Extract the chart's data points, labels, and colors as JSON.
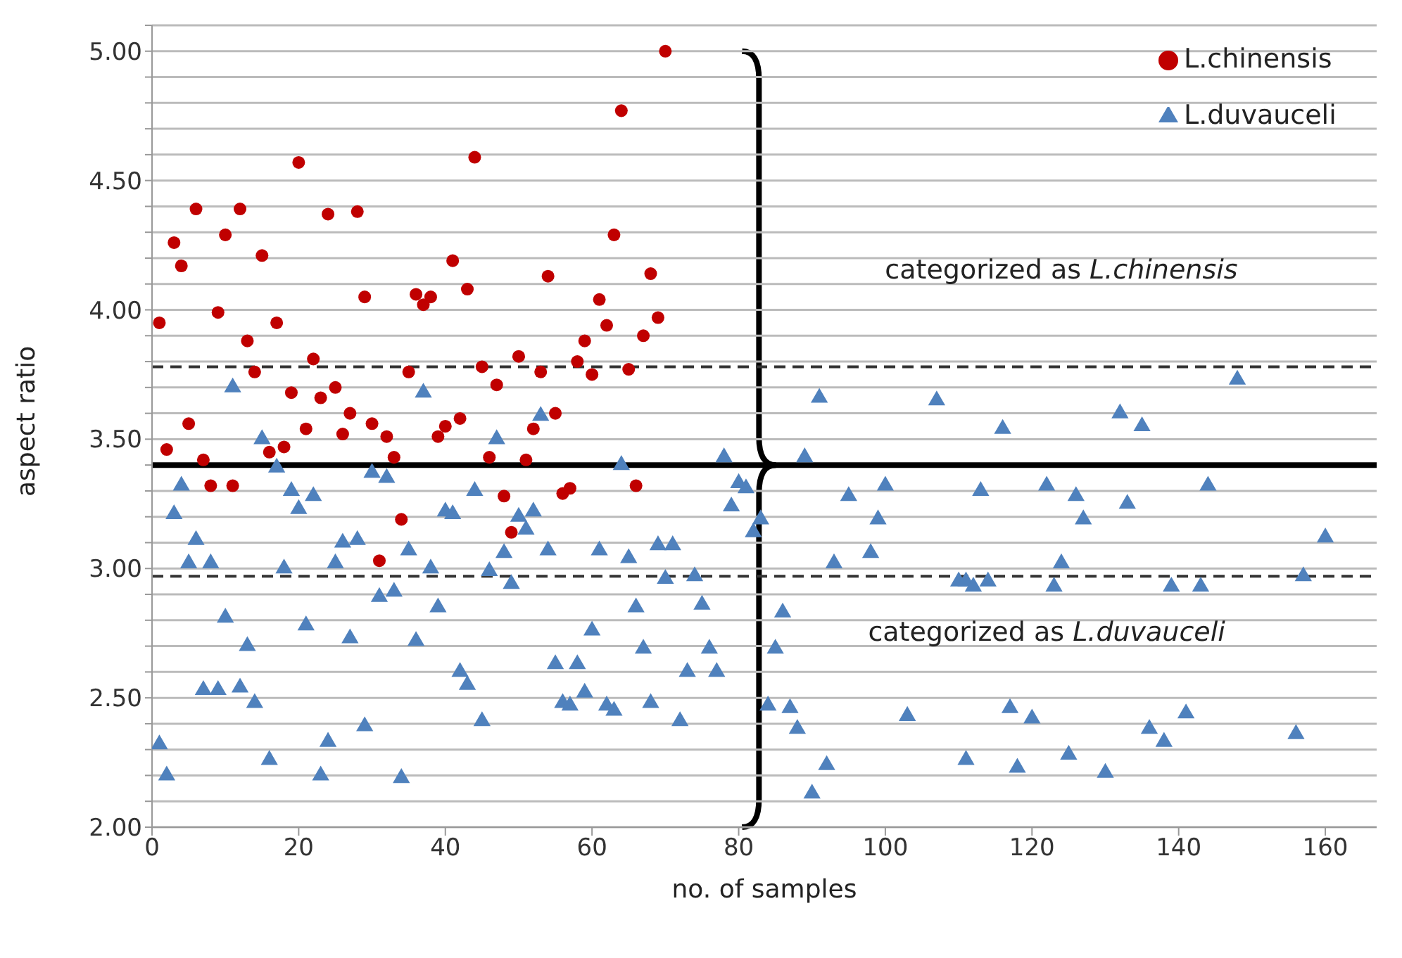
{
  "chart_data": {
    "type": "scatter",
    "xlabel": "no. of samples",
    "ylabel": "aspect ratio",
    "xlim": [
      0,
      167
    ],
    "xticks": [
      0,
      20,
      40,
      60,
      80,
      100,
      120,
      140,
      160
    ],
    "ylim": [
      2,
      5.1
    ],
    "yticks": [
      {
        "value": 2,
        "label": "2.00"
      },
      {
        "value": 2.1,
        "label": null
      },
      {
        "value": 2.2,
        "label": null
      },
      {
        "value": 2.3,
        "label": null
      },
      {
        "value": 2.4,
        "label": null
      },
      {
        "value": 2.5,
        "label": "2.50"
      },
      {
        "value": 2.6,
        "label": null
      },
      {
        "value": 2.7,
        "label": null
      },
      {
        "value": 2.8,
        "label": null
      },
      {
        "value": 2.9,
        "label": null
      },
      {
        "value": 3,
        "label": "3.00"
      },
      {
        "value": 3.1,
        "label": null
      },
      {
        "value": 3.2,
        "label": null
      },
      {
        "value": 3.3,
        "label": null
      },
      {
        "value": 3.4,
        "label": null
      },
      {
        "value": 3.5,
        "label": "3.50"
      },
      {
        "value": 3.6,
        "label": null
      },
      {
        "value": 3.7,
        "label": null
      },
      {
        "value": 3.8,
        "label": null
      },
      {
        "value": 3.9,
        "label": null
      },
      {
        "value": 4,
        "label": "4.00"
      },
      {
        "value": 4.1,
        "label": null
      },
      {
        "value": 4.2,
        "label": null
      },
      {
        "value": 4.3,
        "label": null
      },
      {
        "value": 4.4,
        "label": null
      },
      {
        "value": 4.5,
        "label": "4.50"
      },
      {
        "value": 4.6,
        "label": null
      },
      {
        "value": 4.7,
        "label": null
      },
      {
        "value": 4.8,
        "label": null
      },
      {
        "value": 4.9,
        "label": null
      },
      {
        "value": 5,
        "label": "5.00"
      },
      {
        "value": 5.1,
        "label": null
      }
    ],
    "grid": "y",
    "legend": "top right",
    "ref_lines": [
      {
        "axis": "y",
        "value": 3.4,
        "line_style": "solid",
        "color": "#000000"
      },
      {
        "axis": "y",
        "value": 3.78,
        "line_style": "dashed",
        "color": "#333333"
      },
      {
        "axis": "y",
        "value": 2.97,
        "line_style": "dashed",
        "color": "#333333"
      }
    ],
    "annotations": [
      "categorized as L.chinensis",
      "categorized as L.duvauceli"
    ],
    "series": [
      {
        "name": "L.chinensis",
        "color": "#c00000",
        "marker": "circle",
        "x": [
          1,
          2,
          3,
          4,
          5,
          6,
          7,
          8,
          9,
          10,
          11,
          12,
          13,
          14,
          15,
          16,
          17,
          18,
          19,
          20,
          21,
          22,
          23,
          24,
          25,
          26,
          27,
          28,
          29,
          30,
          31,
          32,
          33,
          34,
          35,
          36,
          37,
          38,
          39,
          40,
          41,
          42,
          43,
          44,
          45,
          46,
          47,
          48,
          49,
          50,
          51,
          52,
          53,
          54,
          55,
          56,
          57,
          58,
          59,
          60,
          61,
          62,
          63,
          64,
          65,
          66,
          67,
          68,
          69,
          70
        ],
        "values": [
          3.95,
          3.46,
          4.26,
          4.17,
          3.56,
          4.39,
          3.42,
          3.32,
          3.99,
          4.29,
          3.32,
          4.39,
          3.88,
          3.76,
          4.21,
          3.45,
          3.95,
          3.47,
          3.68,
          4.57,
          3.54,
          3.81,
          3.66,
          4.37,
          3.7,
          3.52,
          3.6,
          4.38,
          4.05,
          3.56,
          3.03,
          3.51,
          3.43,
          3.19,
          3.76,
          4.06,
          4.02,
          4.05,
          3.51,
          3.55,
          4.19,
          3.58,
          4.08,
          4.59,
          3.78,
          3.43,
          3.71,
          3.28,
          3.14,
          3.82,
          3.42,
          3.54,
          3.76,
          4.13,
          3.6,
          3.29,
          3.31,
          3.8,
          3.88,
          3.75,
          4.04,
          3.94,
          4.29,
          4.77,
          3.77,
          3.32,
          3.9,
          4.14,
          3.97,
          5.0
        ]
      },
      {
        "name": "L.duvauceli",
        "color": "#4f81bd",
        "marker": "triangle",
        "x": [
          4,
          3,
          6,
          5,
          8,
          10,
          13,
          7,
          9,
          12,
          14,
          1,
          2,
          17,
          19,
          22,
          20,
          18,
          21,
          16,
          24,
          23,
          26,
          28,
          25,
          27,
          29,
          34,
          30,
          32,
          31,
          33,
          35,
          36,
          38,
          39,
          40,
          41,
          44,
          42,
          43,
          45,
          48,
          46,
          49,
          50,
          51,
          52,
          54,
          55,
          11,
          15,
          37,
          47,
          53,
          61,
          65,
          69,
          71,
          70,
          74,
          66,
          75,
          60,
          67,
          76,
          58,
          73,
          77,
          56,
          57,
          59,
          62,
          63,
          68,
          72,
          80,
          81,
          79,
          82,
          83,
          78,
          64,
          89,
          86,
          85,
          84,
          87,
          88,
          92,
          90,
          95,
          100,
          99,
          98,
          93,
          103,
          110,
          91,
          107,
          113,
          122,
          126,
          133,
          127,
          144,
          160,
          124,
          111,
          114,
          157,
          112,
          123,
          139,
          143,
          117,
          120,
          111,
          118,
          125,
          130,
          136,
          138,
          141,
          156,
          116,
          132,
          135,
          148
        ],
        "values": [
          3.32,
          3.21,
          3.11,
          3.02,
          3.02,
          2.81,
          2.7,
          2.53,
          2.53,
          2.54,
          2.48,
          2.32,
          2.2,
          3.39,
          3.3,
          3.28,
          3.23,
          3.0,
          2.78,
          2.26,
          2.33,
          2.2,
          3.1,
          3.11,
          3.02,
          2.73,
          2.39,
          2.19,
          3.37,
          3.35,
          2.89,
          2.91,
          3.07,
          2.72,
          3.0,
          2.85,
          3.22,
          3.21,
          3.3,
          2.6,
          2.55,
          2.41,
          3.06,
          2.99,
          2.94,
          3.2,
          3.15,
          3.22,
          3.07,
          2.63,
          3.7,
          3.5,
          3.68,
          3.5,
          3.59,
          3.07,
          3.04,
          3.09,
          3.09,
          2.96,
          2.97,
          2.85,
          2.86,
          2.76,
          2.69,
          2.69,
          2.63,
          2.6,
          2.6,
          2.48,
          2.47,
          2.52,
          2.47,
          2.45,
          2.48,
          2.41,
          3.33,
          3.31,
          3.24,
          3.14,
          3.19,
          3.43,
          3.4,
          3.43,
          2.83,
          2.69,
          2.47,
          2.46,
          2.38,
          2.24,
          2.13,
          3.28,
          3.32,
          3.19,
          3.06,
          3.02,
          2.43,
          2.95,
          3.66,
          3.65,
          3.3,
          3.32,
          3.28,
          3.25,
          3.19,
          3.32,
          3.12,
          3.02,
          2.95,
          2.95,
          2.97,
          2.93,
          2.93,
          2.93,
          2.93,
          2.46,
          2.42,
          2.26,
          2.23,
          2.28,
          2.21,
          2.38,
          2.33,
          2.44,
          2.36,
          3.54,
          3.6,
          3.55,
          3.73
        ]
      }
    ]
  }
}
